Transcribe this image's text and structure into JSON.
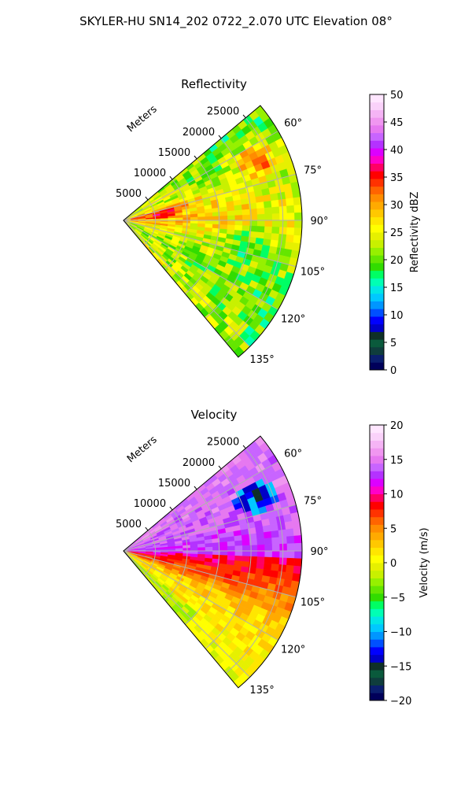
{
  "figure": {
    "suptitle": "SKYLER-HU  SN14_202  0722_2.070 UTC Elevation 08°"
  },
  "chart_data": [
    {
      "type": "polar_sector_heatmap",
      "title": "Reflectivity",
      "radial_label": "Meters",
      "radial_ticks": [
        5000,
        10000,
        15000,
        20000,
        25000
      ],
      "radial_tick_labels": [
        "5000",
        "10000",
        "15000",
        "20000",
        "25000"
      ],
      "rlim": [
        0,
        28000
      ],
      "theta_range_deg": [
        50,
        140
      ],
      "theta_ticks_deg": [
        60,
        75,
        90,
        105,
        120,
        135
      ],
      "theta_tick_labels": [
        "60°",
        "75°",
        "90°",
        "105°",
        "120°",
        "135°"
      ],
      "grid": true,
      "colorbar": {
        "label": "Reflectivity dBZ",
        "range": [
          0,
          50
        ],
        "ticks": [
          0,
          5,
          10,
          15,
          20,
          25,
          30,
          35,
          40,
          45,
          50
        ],
        "tick_labels": [
          "0",
          "5",
          "10",
          "15",
          "20",
          "25",
          "30",
          "35",
          "40",
          "45",
          "50"
        ],
        "colors": [
          "#00005a",
          "#0a1e6e",
          "#0f3d3d",
          "#0a5a3c",
          "#0f3028",
          "#0000c8",
          "#0000ff",
          "#0050ff",
          "#0096ff",
          "#00c8ff",
          "#00e6e6",
          "#00ffb4",
          "#00ff64",
          "#32dc00",
          "#64e600",
          "#96f000",
          "#c8f000",
          "#e6f000",
          "#ffff00",
          "#ffe600",
          "#ffc800",
          "#ffaa00",
          "#ff8c00",
          "#ff6400",
          "#ff3200",
          "#ff0000",
          "#ff0064",
          "#ff00c8",
          "#dc00ff",
          "#b432ff",
          "#c864ff",
          "#e678f0",
          "#f096f0",
          "#f5b4f5",
          "#fad2fa",
          "#ffe6ff"
        ]
      },
      "field_notes": "mostly 20-30 dBZ; 35-40 dBZ cores near 65° far range and along 80° near radar"
    },
    {
      "type": "polar_sector_heatmap",
      "title": "Velocity",
      "radial_label": "Meters",
      "radial_ticks": [
        5000,
        10000,
        15000,
        20000,
        25000
      ],
      "radial_tick_labels": [
        "5000",
        "10000",
        "15000",
        "20000",
        "25000"
      ],
      "rlim": [
        0,
        28000
      ],
      "theta_range_deg": [
        50,
        140
      ],
      "theta_ticks_deg": [
        60,
        75,
        90,
        105,
        120,
        135
      ],
      "theta_tick_labels": [
        "60°",
        "75°",
        "90°",
        "105°",
        "120°",
        "135°"
      ],
      "grid": true,
      "colorbar": {
        "label": "Velocity (m/s)",
        "range": [
          -20,
          20
        ],
        "ticks": [
          -20,
          -15,
          -10,
          -5,
          0,
          5,
          10,
          15,
          20
        ],
        "tick_labels": [
          "−20",
          "−15",
          "−10",
          "−5",
          "0",
          "5",
          "10",
          "15",
          "20"
        ],
        "colors": [
          "#00005a",
          "#0a1e6e",
          "#0f3d3d",
          "#0a5a3c",
          "#0f3028",
          "#0000c8",
          "#0000ff",
          "#0050ff",
          "#0096ff",
          "#00c8ff",
          "#00e6e6",
          "#00ffb4",
          "#00ff64",
          "#32dc00",
          "#64e600",
          "#96f000",
          "#c8f000",
          "#e6f000",
          "#ffff00",
          "#ffe600",
          "#ffc800",
          "#ffaa00",
          "#ff8c00",
          "#ff6400",
          "#ff3200",
          "#ff0000",
          "#ff0064",
          "#ff00c8",
          "#dc00ff",
          "#b432ff",
          "#c864ff",
          "#e678f0",
          "#f096f0",
          "#f5b4f5",
          "#fad2fa",
          "#ffe6ff"
        ]
      },
      "field_notes": "positive 10-18 m/s north of ~93°, negative ~-12 m/s pocket near 65-75° far range, 0-5 m/s south sector"
    }
  ]
}
